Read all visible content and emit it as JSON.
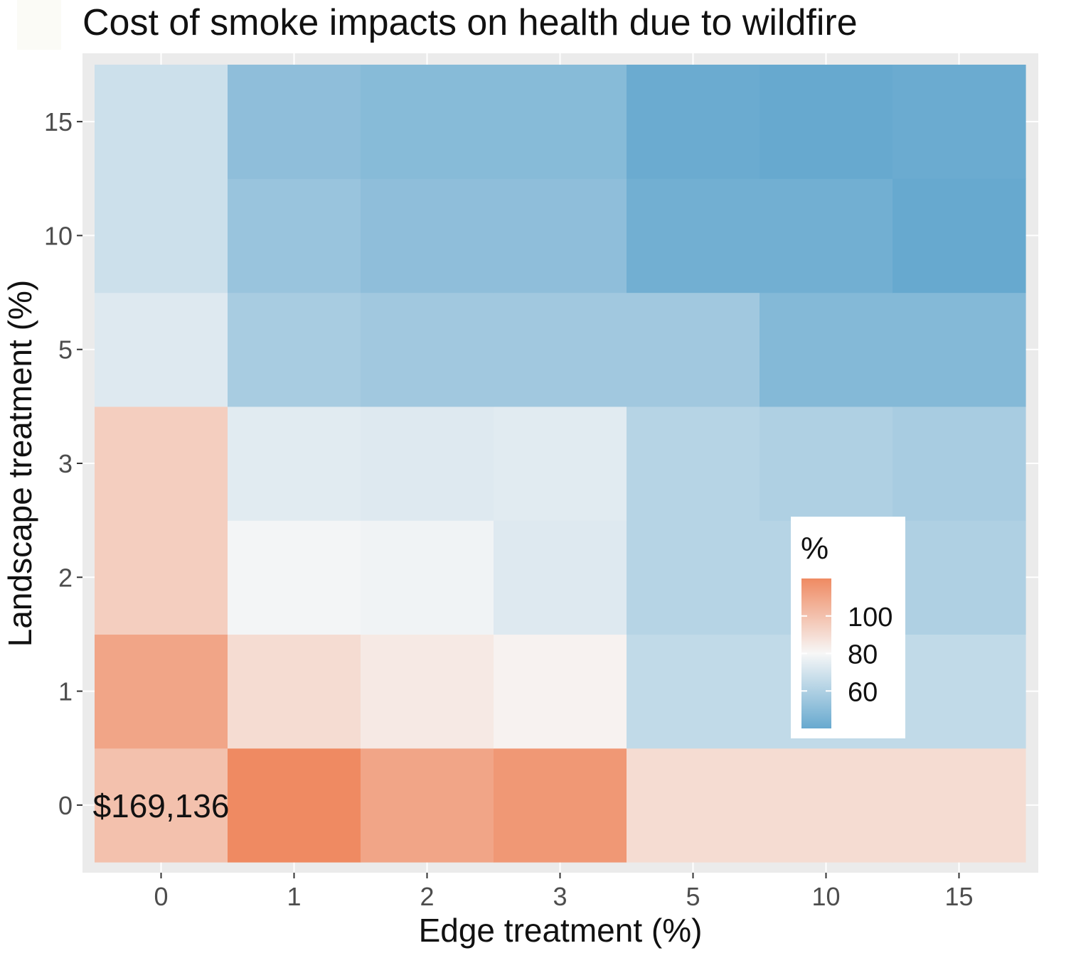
{
  "chart_data": {
    "type": "heatmap",
    "title": "Cost of smoke impacts on health due to wildfire",
    "xlabel": "Edge treatment (%)",
    "ylabel": "Landscape treatment (%)",
    "x_categories": [
      "0",
      "1",
      "2",
      "3",
      "5",
      "10",
      "15"
    ],
    "y_categories": [
      "0",
      "1",
      "2",
      "3",
      "5",
      "10",
      "15"
    ],
    "values": [
      [
        100,
        120,
        110,
        115,
        90,
        90,
        90
      ],
      [
        110,
        90,
        85,
        82,
        65,
        65,
        65
      ],
      [
        95,
        79,
        78,
        73,
        62,
        62,
        60
      ],
      [
        95,
        74,
        73,
        74,
        62,
        60,
        58
      ],
      [
        73,
        58,
        56,
        56,
        56,
        48,
        48
      ],
      [
        68,
        54,
        51,
        51,
        43,
        43,
        40
      ],
      [
        68,
        51,
        49,
        49,
        41,
        39,
        41
      ]
    ],
    "annotations": [
      {
        "x": "0",
        "y": "0",
        "text": "$169,136"
      }
    ],
    "legend": {
      "title": "%",
      "ticks": [
        60,
        80,
        100
      ],
      "range": [
        40,
        120
      ],
      "position": "inside bottom-right"
    },
    "color_scale": {
      "low": "#67a9cf",
      "mid": "#f7f7f7",
      "high": "#ef8a62",
      "midpoint": 80
    },
    "grid": true
  }
}
